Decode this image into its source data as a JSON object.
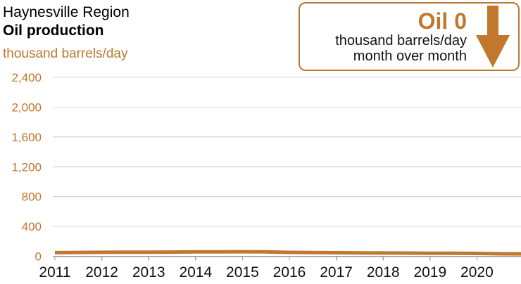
{
  "header": {
    "region": "Haynesville Region",
    "title": "Oil production",
    "units": "thousand barrels/day"
  },
  "callout": {
    "headline": "Oil 0",
    "subline1": "thousand barrels/day",
    "subline2": "month over month",
    "arrow_direction": "down"
  },
  "colors": {
    "accent": "#c0772e",
    "gridline": "#d9d9d9",
    "axis": "#969696",
    "tick": "#a3a3a3",
    "xlabel": "#111111"
  },
  "chart_data": {
    "type": "line",
    "title": "Haynesville Region Oil production",
    "ylabel": "thousand barrels/day",
    "xlabel": "",
    "xlim": [
      2011,
      2021
    ],
    "ylim": [
      0,
      2400
    ],
    "yticks": [
      0,
      400,
      800,
      1200,
      1600,
      2000,
      2400
    ],
    "ytick_labels": [
      "0",
      "400",
      "800",
      "1,200",
      "1,600",
      "2,000",
      "2,400"
    ],
    "xticks": [
      2011,
      2012,
      2013,
      2014,
      2015,
      2016,
      2017,
      2018,
      2019,
      2020
    ],
    "grid": "horizontal",
    "legend": "none",
    "line_width": 5,
    "series": [
      {
        "name": "Oil production",
        "x": [
          2011,
          2011.5,
          2012,
          2012.5,
          2013,
          2013.5,
          2014,
          2014.5,
          2015,
          2015.5,
          2016,
          2016.5,
          2017,
          2017.5,
          2018,
          2018.5,
          2019,
          2019.5,
          2020,
          2020.5,
          2021
        ],
        "values": [
          48,
          51,
          53,
          54,
          55,
          56,
          58,
          59,
          60,
          58,
          52,
          50,
          47,
          45,
          43,
          42,
          41,
          40,
          38,
          33,
          32
        ]
      }
    ]
  }
}
